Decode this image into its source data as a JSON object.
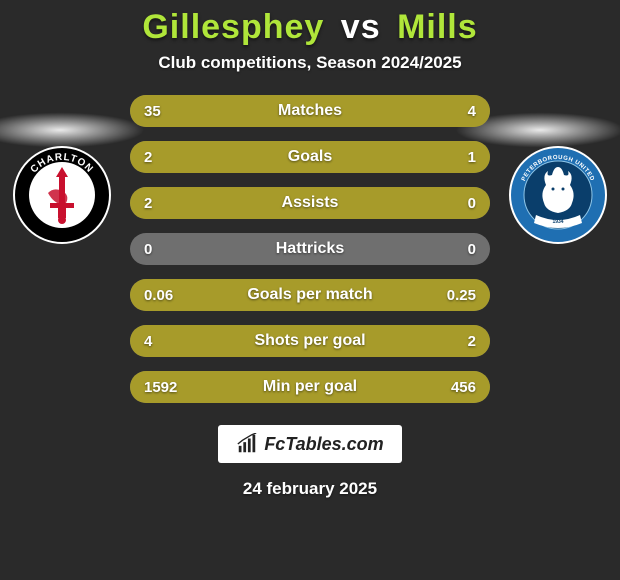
{
  "title": {
    "player1": "Gillesphey",
    "vs": "vs",
    "player2": "Mills",
    "color_p1": "#b0e63a",
    "color_vs": "#ffffff",
    "color_p2": "#b0e63a",
    "fontsize": 34
  },
  "subtitle": "Club competitions, Season 2024/2025",
  "background_color": "#2a2a2a",
  "badges": {
    "left": {
      "name": "Charlton Athletic",
      "ring_color": "#c8102e",
      "inner_color": "#000000",
      "sword_color": "#c8102e",
      "text_color": "#ffffff"
    },
    "right": {
      "name": "Peterborough United",
      "ring_color": "#1f6fb2",
      "inner_color": "#0a3e6b",
      "accent_color": "#ffffff"
    }
  },
  "bars": {
    "track_color": "#6f6f6f",
    "fill_color": "#a79b2a",
    "height": 32,
    "radius": 16,
    "label_fontsize": 16,
    "value_fontsize": 15,
    "text_color": "#ffffff",
    "rows": [
      {
        "label": "Matches",
        "left": "35",
        "right": "4",
        "left_pct": 87,
        "right_pct": 13
      },
      {
        "label": "Goals",
        "left": "2",
        "right": "1",
        "left_pct": 58,
        "right_pct": 42
      },
      {
        "label": "Assists",
        "left": "2",
        "right": "0",
        "left_pct": 100,
        "right_pct": 0
      },
      {
        "label": "Hattricks",
        "left": "0",
        "right": "0",
        "left_pct": 0,
        "right_pct": 0
      },
      {
        "label": "Goals per match",
        "left": "0.06",
        "right": "0.25",
        "left_pct": 25,
        "right_pct": 75
      },
      {
        "label": "Shots per goal",
        "left": "4",
        "right": "2",
        "left_pct": 58,
        "right_pct": 42
      },
      {
        "label": "Min per goal",
        "left": "1592",
        "right": "456",
        "left_pct": 72,
        "right_pct": 28
      }
    ]
  },
  "brand": {
    "text": "FcTables.com",
    "bg_color": "#ffffff",
    "text_color": "#222222",
    "icon_color": "#222222",
    "fontsize": 18
  },
  "date": "24 february 2025"
}
